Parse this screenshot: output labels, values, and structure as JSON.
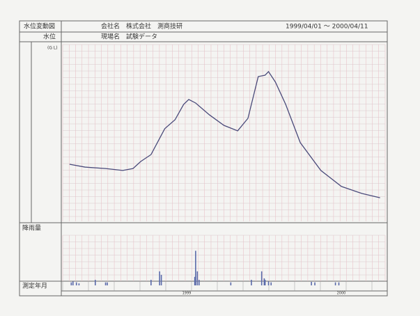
{
  "header": {
    "title": "水位変動図",
    "company": "会社名　株式会社　測商技研",
    "period": "1999/04/01 ～ 2000/04/11",
    "subtitle": "水位",
    "site": "現場名　試験データ",
    "unit": "(G L)",
    "rain_label": "降雨量",
    "date_label": "測定年月",
    "years": [
      "1999",
      "2000"
    ]
  },
  "chart_data": [
    {
      "type": "line",
      "color": "#4a4a7a",
      "xlim": [
        0,
        376
      ],
      "ylim": [
        0,
        100
      ],
      "x": [
        8,
        26,
        50,
        70,
        82,
        91,
        103,
        119,
        131,
        141,
        147,
        155,
        171,
        188,
        204,
        216,
        228,
        236,
        240,
        248,
        260,
        277,
        301,
        325,
        349,
        370
      ],
      "values": [
        32.4,
        30.8,
        30.0,
        28.9,
        30.0,
        34.0,
        37.9,
        52.6,
        57.7,
        66.4,
        69.2,
        67.2,
        60.5,
        54.5,
        51.4,
        58.5,
        82.2,
        83.0,
        85.0,
        79.1,
        66.4,
        44.7,
        28.9,
        19.8,
        15.8,
        13.4
      ]
    },
    {
      "type": "bar",
      "color": "#5a6aaa",
      "xlim": [
        0,
        376
      ],
      "ylim": [
        0,
        100
      ],
      "x": [
        10,
        12,
        16,
        19,
        38,
        50,
        52,
        103,
        113,
        115,
        154,
        155,
        157,
        159,
        196,
        220,
        232,
        235,
        236,
        240,
        243,
        290,
        294,
        318,
        322
      ],
      "values": [
        6,
        8,
        6,
        4,
        11,
        6,
        6,
        11,
        28,
        21,
        17,
        69,
        28,
        11,
        6,
        11,
        28,
        14,
        11,
        8,
        6,
        7,
        6,
        6,
        6
      ]
    }
  ]
}
